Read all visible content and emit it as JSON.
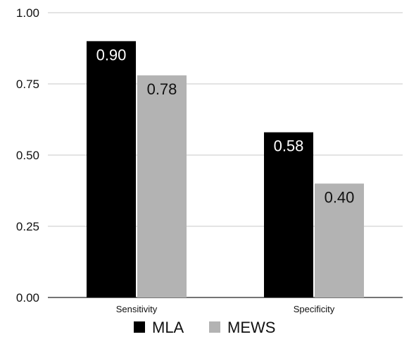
{
  "chart_data": {
    "type": "bar",
    "categories": [
      "Sensitivity",
      "Specificity"
    ],
    "series": [
      {
        "name": "MLA",
        "values": [
          0.9,
          0.58
        ],
        "labels": [
          "0.90",
          "0.58"
        ],
        "color": "#000000",
        "label_color": "#ffffff"
      },
      {
        "name": "MEWS",
        "values": [
          0.78,
          0.4
        ],
        "labels": [
          "0.78",
          "0.40"
        ],
        "color": "#b3b3b3",
        "label_color": "#111111"
      }
    ],
    "ylim": [
      0,
      1
    ],
    "yticks": [
      "0.00",
      "0.25",
      "0.50",
      "0.75",
      "1.00"
    ],
    "grid": true,
    "legend_position": "bottom",
    "xlabel": "",
    "ylabel": "",
    "title": ""
  }
}
